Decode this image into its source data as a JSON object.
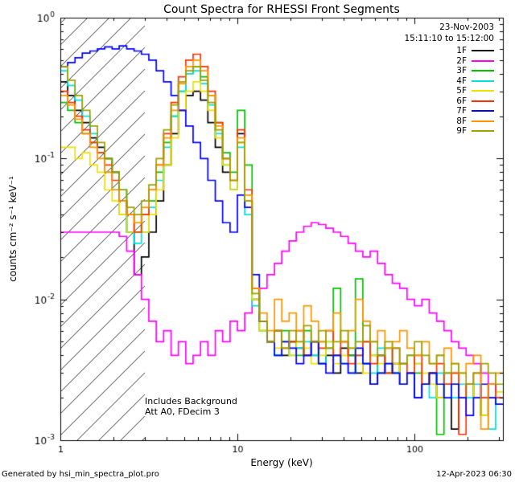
{
  "header": {
    "title": "Count Spectra for RHESSI Front Segments"
  },
  "footer": {
    "left": "Generated by hsi_min_spectra_plot.pro",
    "right": "12-Apr-2023 06:30"
  },
  "chart_data": {
    "type": "line",
    "step": true,
    "title": "Count Spectra for RHESSI Front Segments",
    "xlabel": "Energy (keV)",
    "ylabel": "counts cm⁻² s⁻¹ keV⁻¹",
    "x_scale": "log",
    "y_scale": "log",
    "xlim": [
      1,
      316
    ],
    "ylim": [
      0.001,
      1
    ],
    "x_ticks": [
      1,
      10,
      100
    ],
    "x_tick_labels": [
      "1",
      "10",
      "100"
    ],
    "y_ticks": [
      1,
      0.1,
      0.01,
      0.001
    ],
    "y_tick_exponents": [
      0,
      -1,
      -2,
      -3
    ],
    "grid": false,
    "legend_position": "top-right-inside",
    "hatch_region": {
      "from": 1,
      "to": 3
    },
    "annotations": {
      "date": "23-Nov-2003",
      "time_range": "15:11:10 to 15:12:00",
      "note_line1": "Includes Background",
      "note_line2": "Att A0, FDecim 3"
    },
    "energies_kev": [
      1.0,
      1.1,
      1.21,
      1.33,
      1.47,
      1.62,
      1.78,
      1.96,
      2.15,
      2.37,
      2.61,
      2.87,
      3.16,
      3.48,
      3.83,
      4.22,
      4.64,
      5.11,
      5.62,
      6.19,
      6.81,
      7.5,
      8.25,
      9.09,
      10.0,
      11.0,
      12.1,
      13.3,
      14.7,
      16.2,
      17.8,
      19.6,
      21.5,
      23.7,
      26.1,
      28.7,
      31.6,
      34.8,
      38.3,
      42.2,
      46.4,
      51.1,
      56.2,
      61.9,
      68.1,
      75.0,
      82.5,
      90.8,
      100.0,
      110.1,
      121.2,
      133.4,
      146.8,
      161.6,
      177.8,
      195.7,
      215.4,
      237.1,
      261.0,
      287.3
    ],
    "series": [
      {
        "name": "1F",
        "color": "#000000",
        "values": [
          0.35,
          0.28,
          0.22,
          0.18,
          0.14,
          0.12,
          0.1,
          0.08,
          0.05,
          0.03,
          0.015,
          0.02,
          0.03,
          0.05,
          0.09,
          0.15,
          0.22,
          0.28,
          0.3,
          0.26,
          0.18,
          0.12,
          0.08,
          0.06,
          0.15,
          0.05,
          0.012,
          0.007,
          0.005,
          0.006,
          0.004,
          0.005,
          0.0045,
          0.004,
          0.005,
          0.0035,
          0.004,
          0.003,
          0.0045,
          0.004,
          0.003,
          0.0035,
          0.0025,
          0.004,
          0.003,
          0.0035,
          0.0025,
          0.003,
          0.002,
          0.0025,
          0.003,
          0.002,
          0.0025,
          0.0012,
          0.002,
          0.0025,
          0.002,
          0.0015,
          0.002,
          0.0018
        ]
      },
      {
        "name": "2F",
        "color": "#ff00ff",
        "values": [
          0.03,
          0.03,
          0.03,
          0.03,
          0.03,
          0.03,
          0.03,
          0.03,
          0.028,
          0.022,
          0.015,
          0.01,
          0.007,
          0.005,
          0.006,
          0.004,
          0.005,
          0.0035,
          0.004,
          0.005,
          0.004,
          0.006,
          0.005,
          0.007,
          0.006,
          0.008,
          0.01,
          0.012,
          0.015,
          0.018,
          0.022,
          0.026,
          0.03,
          0.033,
          0.035,
          0.034,
          0.032,
          0.03,
          0.028,
          0.025,
          0.022,
          0.02,
          0.022,
          0.018,
          0.015,
          0.013,
          0.012,
          0.01,
          0.009,
          0.01,
          0.008,
          0.007,
          0.006,
          0.005,
          0.0045,
          0.004,
          0.0035,
          0.003,
          0.0025,
          0.002
        ]
      },
      {
        "name": "3F",
        "color": "#00c000",
        "values": [
          0.25,
          0.22,
          0.18,
          0.15,
          0.13,
          0.11,
          0.1,
          0.08,
          0.06,
          0.04,
          0.03,
          0.04,
          0.05,
          0.08,
          0.13,
          0.2,
          0.3,
          0.4,
          0.45,
          0.38,
          0.28,
          0.18,
          0.11,
          0.08,
          0.22,
          0.09,
          0.01,
          0.006,
          0.005,
          0.004,
          0.006,
          0.005,
          0.004,
          0.006,
          0.004,
          0.005,
          0.0045,
          0.012,
          0.005,
          0.004,
          0.014,
          0.005,
          0.004,
          0.003,
          0.0045,
          0.003,
          0.0035,
          0.004,
          0.003,
          0.0025,
          0.003,
          0.0011,
          0.003,
          0.0025,
          0.002,
          0.0025,
          0.002,
          0.0015,
          0.002,
          0.0018
        ]
      },
      {
        "name": "4F",
        "color": "#00e0e0",
        "values": [
          0.42,
          0.33,
          0.26,
          0.2,
          0.15,
          0.11,
          0.08,
          0.06,
          0.04,
          0.03,
          0.025,
          0.03,
          0.045,
          0.07,
          0.12,
          0.2,
          0.3,
          0.4,
          0.42,
          0.34,
          0.24,
          0.15,
          0.09,
          0.06,
          0.12,
          0.04,
          0.009,
          0.006,
          0.005,
          0.004,
          0.005,
          0.004,
          0.0045,
          0.005,
          0.004,
          0.0035,
          0.005,
          0.004,
          0.0035,
          0.003,
          0.004,
          0.0035,
          0.003,
          0.0045,
          0.0035,
          0.003,
          0.0025,
          0.003,
          0.0035,
          0.0025,
          0.002,
          0.003,
          0.0025,
          0.002,
          0.0025,
          0.002,
          0.0025,
          0.002,
          0.0012,
          0.002
        ]
      },
      {
        "name": "5F",
        "color": "#f0e000",
        "values": [
          0.12,
          0.12,
          0.1,
          0.11,
          0.09,
          0.08,
          0.06,
          0.05,
          0.04,
          0.03,
          0.035,
          0.03,
          0.04,
          0.06,
          0.09,
          0.14,
          0.22,
          0.3,
          0.35,
          0.3,
          0.22,
          0.14,
          0.09,
          0.06,
          0.13,
          0.05,
          0.01,
          0.006,
          0.005,
          0.0045,
          0.005,
          0.004,
          0.005,
          0.0045,
          0.0035,
          0.004,
          0.005,
          0.0035,
          0.004,
          0.0045,
          0.0035,
          0.003,
          0.004,
          0.0035,
          0.003,
          0.0035,
          0.0025,
          0.003,
          0.0035,
          0.003,
          0.0025,
          0.002,
          0.0025,
          0.003,
          0.002,
          0.0025,
          0.002,
          0.0015,
          0.002,
          0.0022
        ]
      },
      {
        "name": "6F",
        "color": "#ff3000",
        "values": [
          0.3,
          0.25,
          0.2,
          0.16,
          0.13,
          0.11,
          0.09,
          0.07,
          0.05,
          0.04,
          0.03,
          0.04,
          0.06,
          0.09,
          0.15,
          0.25,
          0.38,
          0.5,
          0.55,
          0.45,
          0.3,
          0.18,
          0.1,
          0.07,
          0.16,
          0.06,
          0.012,
          0.007,
          0.005,
          0.006,
          0.0045,
          0.005,
          0.006,
          0.004,
          0.005,
          0.0045,
          0.006,
          0.004,
          0.005,
          0.0035,
          0.004,
          0.005,
          0.0035,
          0.004,
          0.003,
          0.0045,
          0.0035,
          0.003,
          0.004,
          0.0025,
          0.003,
          0.0035,
          0.0025,
          0.003,
          0.0011,
          0.0025,
          0.003,
          0.002,
          0.0025,
          0.002
        ]
      },
      {
        "name": "7F",
        "color": "#0000ff",
        "values": [
          0.45,
          0.48,
          0.52,
          0.56,
          0.58,
          0.6,
          0.62,
          0.6,
          0.63,
          0.6,
          0.58,
          0.55,
          0.5,
          0.42,
          0.35,
          0.28,
          0.22,
          0.17,
          0.13,
          0.1,
          0.07,
          0.05,
          0.035,
          0.03,
          0.055,
          0.045,
          0.015,
          0.007,
          0.005,
          0.004,
          0.005,
          0.0045,
          0.0035,
          0.004,
          0.005,
          0.0035,
          0.003,
          0.004,
          0.0035,
          0.003,
          0.0045,
          0.0035,
          0.0025,
          0.003,
          0.0035,
          0.003,
          0.0025,
          0.003,
          0.002,
          0.0025,
          0.003,
          0.0025,
          0.002,
          0.0025,
          0.002,
          0.0015,
          0.002,
          0.0025,
          0.002,
          0.0018
        ]
      },
      {
        "name": "8F",
        "color": "#ff9500",
        "values": [
          0.28,
          0.24,
          0.19,
          0.15,
          0.12,
          0.1,
          0.08,
          0.06,
          0.05,
          0.04,
          0.035,
          0.045,
          0.06,
          0.09,
          0.14,
          0.22,
          0.34,
          0.45,
          0.5,
          0.42,
          0.28,
          0.17,
          0.1,
          0.07,
          0.14,
          0.055,
          0.012,
          0.008,
          0.006,
          0.01,
          0.007,
          0.008,
          0.006,
          0.009,
          0.007,
          0.005,
          0.006,
          0.008,
          0.005,
          0.006,
          0.01,
          0.007,
          0.005,
          0.006,
          0.0045,
          0.005,
          0.006,
          0.0045,
          0.004,
          0.005,
          0.0035,
          0.004,
          0.0045,
          0.0035,
          0.003,
          0.0035,
          0.004,
          0.0012,
          0.0025,
          0.003
        ]
      },
      {
        "name": "9F",
        "color": "#9f9f00",
        "values": [
          0.45,
          0.36,
          0.28,
          0.22,
          0.17,
          0.13,
          0.1,
          0.08,
          0.06,
          0.045,
          0.04,
          0.05,
          0.065,
          0.1,
          0.16,
          0.24,
          0.35,
          0.42,
          0.45,
          0.36,
          0.25,
          0.16,
          0.1,
          0.07,
          0.13,
          0.05,
          0.011,
          0.007,
          0.005,
          0.006,
          0.0045,
          0.006,
          0.005,
          0.0065,
          0.005,
          0.006,
          0.0045,
          0.005,
          0.006,
          0.0045,
          0.005,
          0.0065,
          0.005,
          0.004,
          0.005,
          0.0045,
          0.0035,
          0.004,
          0.005,
          0.004,
          0.0035,
          0.004,
          0.003,
          0.0035,
          0.003,
          0.0025,
          0.003,
          0.0035,
          0.003,
          0.0025
        ]
      }
    ]
  }
}
